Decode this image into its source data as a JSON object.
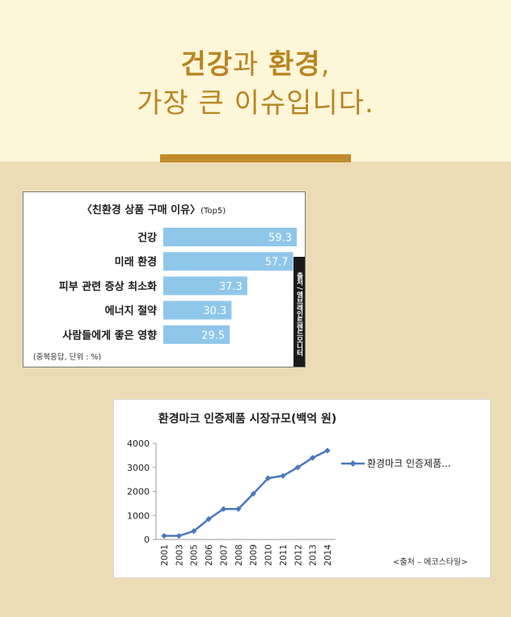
{
  "hero": {
    "line1_part1": "건강",
    "line1_part2": "과 ",
    "line1_part3": "환경",
    "line1_part4": ",",
    "line2": "가장 큰 이슈입니다."
  },
  "colors": {
    "hero_bg": "#fdf6d9",
    "page_bg": "#ecdcb6",
    "accent": "#c18a2c",
    "bar_fill": "#8fc7ea",
    "line_color": "#4a78c0"
  },
  "chart_data": [
    {
      "type": "bar",
      "orientation": "horizontal",
      "title": "〈친환경 상품 구매 이유〉",
      "title_suffix": "(Top5)",
      "categories": [
        "건강",
        "미래 환경",
        "피부 관련 증상 최소화",
        "에너지 절약",
        "사람들에게 좋은 영향"
      ],
      "values": [
        59.3,
        57.7,
        37.3,
        30.3,
        29.5
      ],
      "value_labels": [
        "59.3",
        "57.7",
        "37.3",
        "30.3",
        "29.5"
      ],
      "footnote": "(중복응답, 단위 : %)",
      "source": "출처 / 엠브레인트렌드모니터"
    },
    {
      "type": "line",
      "title": "환경마크 인증제품 시장규모(백억 원)",
      "x": [
        "2001",
        "2003",
        "2005",
        "2006",
        "2007",
        "2008",
        "2009",
        "2010",
        "2011",
        "2012",
        "2013",
        "2014"
      ],
      "series": [
        {
          "name": "환경마크 인증제품...",
          "values": [
            150,
            150,
            350,
            850,
            1270,
            1270,
            1900,
            2550,
            2650,
            3000,
            3400,
            3700
          ]
        }
      ],
      "y_ticks": [
        "0",
        "1000",
        "2000",
        "3000",
        "4000"
      ],
      "ylim": [
        0,
        4000
      ],
      "grid": false,
      "legend": "right",
      "source": "<출처 – 에코스타일>"
    }
  ]
}
